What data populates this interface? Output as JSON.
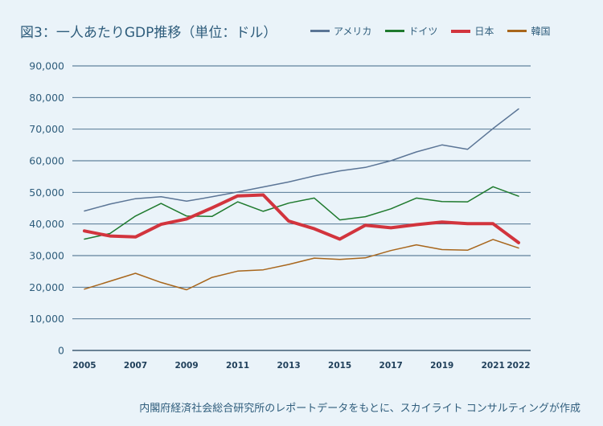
{
  "title": "図3：一人あたりGDP推移（単位：ドル）",
  "source": "内閣府経済社会総合研究所のレポートデータをもとに、スカイライト コンサルティングが作成",
  "chart_data": {
    "type": "line",
    "title": "図3：一人あたりGDP推移（単位：ドル）",
    "x": [
      2005,
      2006,
      2007,
      2008,
      2009,
      2010,
      2011,
      2012,
      2013,
      2014,
      2015,
      2016,
      2017,
      2018,
      2019,
      2020,
      2021,
      2022
    ],
    "x_tick_labels": [
      "2005",
      "2007",
      "2009",
      "2011",
      "2013",
      "2015",
      "2017",
      "2019",
      "2021",
      "2022"
    ],
    "y_ticks": [
      "0",
      "10,000",
      "20,000",
      "30,000",
      "40,000",
      "50,000",
      "60,000",
      "70,000",
      "80,000",
      "90,000"
    ],
    "ylim": [
      0,
      90000
    ],
    "grid": "horizontal",
    "legend_position": "top-right",
    "series": [
      {
        "name": "アメリカ",
        "color": "#5b7596",
        "width": 1.5,
        "values": [
          44100,
          46300,
          48000,
          48600,
          47200,
          48600,
          50100,
          51700,
          53300,
          55200,
          56800,
          57900,
          60000,
          62800,
          65000,
          63600,
          70200,
          76400
        ]
      },
      {
        "name": "ドイツ",
        "color": "#1f7a2e",
        "width": 1.5,
        "values": [
          35200,
          37000,
          42500,
          46500,
          42500,
          42400,
          47000,
          44000,
          46600,
          48200,
          41300,
          42300,
          44800,
          48200,
          47100,
          47000,
          51800,
          48800
        ]
      },
      {
        "name": "日本",
        "color": "#d2343d",
        "width": 4,
        "values": [
          37800,
          36200,
          35900,
          39900,
          41600,
          45100,
          48900,
          49200,
          40900,
          38500,
          35200,
          39600,
          38800,
          39800,
          40600,
          40100,
          40100,
          34100
        ]
      },
      {
        "name": "韓国",
        "color": "#a8661c",
        "width": 1.5,
        "values": [
          19400,
          21900,
          24400,
          21500,
          19200,
          23100,
          25100,
          25500,
          27200,
          29200,
          28800,
          29300,
          31600,
          33400,
          31900,
          31700,
          35100,
          32400
        ]
      }
    ]
  }
}
